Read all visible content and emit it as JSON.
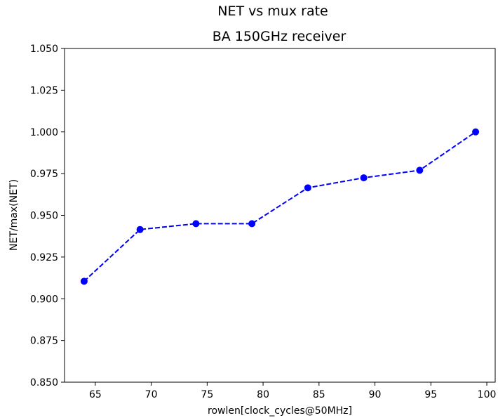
{
  "chart_data": {
    "type": "line",
    "title": "NET vs mux rate",
    "subtitle": "BA 150GHz receiver",
    "xlabel": "rowlen[clock_cycles@50MHz]",
    "ylabel": "NET/max(NET)",
    "xlim": [
      62.25,
      100.75
    ],
    "ylim": [
      0.85,
      1.05
    ],
    "xticks": [
      65,
      70,
      75,
      80,
      85,
      90,
      95,
      100
    ],
    "yticks": [
      0.85,
      0.875,
      0.9,
      0.925,
      0.95,
      0.975,
      1.0,
      1.025,
      1.05
    ],
    "xtick_labels": [
      "65",
      "70",
      "75",
      "80",
      "85",
      "90",
      "95",
      "100"
    ],
    "ytick_labels": [
      "0.850",
      "0.875",
      "0.900",
      "0.925",
      "0.950",
      "0.975",
      "1.000",
      "1.025",
      "1.050"
    ],
    "grid": false,
    "series": [
      {
        "color": "#0000ff",
        "line_style": "dashed",
        "marker": "circle",
        "x": [
          64,
          69,
          74,
          79,
          84,
          89,
          94,
          99
        ],
        "y": [
          0.9105,
          0.9415,
          0.945,
          0.945,
          0.9665,
          0.9725,
          0.977,
          1.0
        ]
      }
    ]
  }
}
